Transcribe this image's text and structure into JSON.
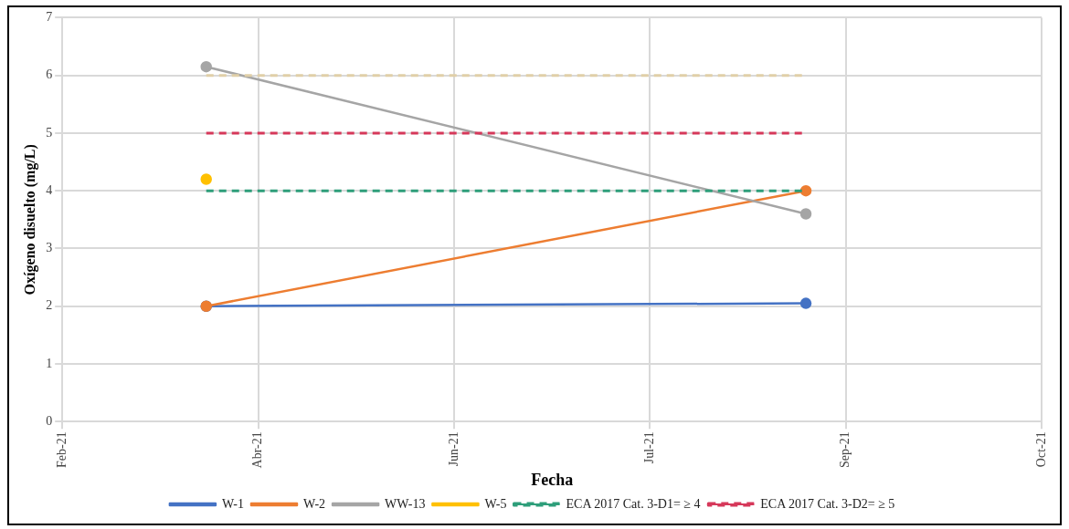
{
  "chart_data": {
    "type": "line",
    "xlabel": "Fecha",
    "ylabel": "Oxígeno disuelto (mg/L)",
    "xlim": [
      "2021-02-27",
      "2021-10-30"
    ],
    "xticks": [
      {
        "value": "2021-02-27",
        "label": "Feb-21"
      },
      {
        "value": "2021-04-17",
        "label": "Abr-21"
      },
      {
        "value": "2021-06-05",
        "label": "Jun-21"
      },
      {
        "value": "2021-07-24",
        "label": "Jul-21"
      },
      {
        "value": "2021-09-11",
        "label": "Sep-21"
      },
      {
        "value": "2021-10-30",
        "label": "Oct-21"
      }
    ],
    "ylim": [
      0,
      7
    ],
    "yticks": [
      0,
      1,
      2,
      3,
      4,
      5,
      6,
      7
    ],
    "x": [
      "2021-04-04",
      "2021-09-01"
    ],
    "series": [
      {
        "name": "W-1",
        "color": "#4472c4",
        "values": [
          2,
          2.05
        ],
        "marker": "circle",
        "line_style": "solid"
      },
      {
        "name": "W-2",
        "color": "#ed7d31",
        "values": [
          2,
          4
        ],
        "marker": "circle",
        "line_style": "solid"
      },
      {
        "name": "WW-13",
        "color": "#a5a5a5",
        "values": [
          6.15,
          3.6
        ],
        "marker": "circle",
        "line_style": "solid"
      },
      {
        "name": "W-5",
        "color": "#ffc000",
        "values": [
          4.2,
          null
        ],
        "marker": "circle",
        "line_style": "solid"
      },
      {
        "name": "ECA 2017 Cat. 3-D1= ≥ 4",
        "color": "#2e9e7a",
        "values": [
          4,
          4
        ],
        "marker": "none",
        "line_style": "dashed"
      },
      {
        "name": "ECA 2017 Cat. 3-D2= ≥ 5",
        "color": "#d6385a",
        "values": [
          5,
          5
        ],
        "marker": "none",
        "line_style": "dashed"
      },
      {
        "color": "#e0cfa8",
        "values": [
          6,
          6
        ],
        "marker": "none",
        "line_style": "dashed"
      }
    ],
    "grid": true,
    "legend": "bottom"
  }
}
